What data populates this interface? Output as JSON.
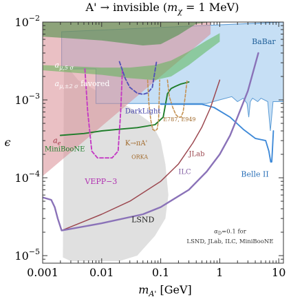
{
  "chart_data": {
    "type": "area",
    "title": "A' → invisible (m_χ = 1 MeV)",
    "title_parts": {
      "main": "A' → invisible (",
      "m": "m",
      "sub": "χ",
      "rest": " = 1 MeV)"
    },
    "xlabel": {
      "m": "m",
      "sub": "A'",
      "rest": " [GeV]"
    },
    "ylabel": "ϵ",
    "x_scale": "log",
    "y_scale": "log",
    "xlim": [
      0.001,
      12
    ],
    "ylim": [
      8e-06,
      0.01
    ],
    "x_ticks": [
      {
        "value": 0.001,
        "label": "0.001"
      },
      {
        "value": 0.01,
        "label": "0.01"
      },
      {
        "value": 0.1,
        "label": "0.1"
      },
      {
        "value": 1,
        "label": "1"
      },
      {
        "value": 10,
        "label": "10"
      }
    ],
    "y_ticks": [
      {
        "value": 1e-05,
        "base": "10",
        "exp": "−5"
      },
      {
        "value": 0.0001,
        "base": "10",
        "exp": "−4"
      },
      {
        "value": 0.001,
        "base": "10",
        "exp": "−3"
      },
      {
        "value": 0.01,
        "base": "10",
        "exp": "−2"
      }
    ],
    "regions": [
      {
        "name": "LSND",
        "color": "#e0e0e0",
        "stroke": "none",
        "opacity": 1,
        "x": [
          0.0022,
          0.0023,
          0.004,
          0.01,
          0.03,
          0.07,
          0.1,
          0.12,
          0.135,
          0.12,
          0.08,
          0.04,
          0.02,
          0.01,
          0.005,
          0.003,
          0.0022
        ],
        "y": [
          9.5e-06,
          0.003,
          0.0018,
          0.0012,
          0.0008,
          0.0005,
          0.0003,
          0.00015,
          6e-05,
          3e-05,
          1.8e-05,
          1e-05,
          8.5e-06,
          8.5e-06,
          8.5e-06,
          8.5e-06,
          9.5e-06
        ]
      },
      {
        "name": "BaBar",
        "color": "#c6dff5",
        "stroke": "#5b9bd5",
        "opacity": 1,
        "x": [
          0.0021,
          0.0021,
          0.008,
          0.008,
          0.6,
          0.9,
          1.6,
          2.0,
          2.5,
          2.9,
          3.1,
          3.3,
          3.6,
          4.4,
          5.0,
          6.5,
          7.2,
          8.0,
          12,
          12
        ],
        "y": [
          0.0075,
          0.0025,
          0.0025,
          0.0009,
          0.0009,
          0.00098,
          0.0011,
          0.00095,
          0.00105,
          0.0009,
          0.0006,
          0.00095,
          0.00105,
          0.00095,
          0.00105,
          0.00095,
          0.0004,
          0.00095,
          0.00095,
          0.01
        ]
      },
      {
        "name": "a_e",
        "color": "#d98c94",
        "stroke": "none",
        "opacity": 0.55,
        "x": [
          0.001,
          0.001,
          0.2,
          0.7,
          0.7
        ],
        "y": [
          0.000105,
          0.01,
          0.01,
          0.01,
          0.007
        ]
      },
      {
        "name": "a_mu_5sigma",
        "color": "#4f8f4a",
        "stroke": "none",
        "opacity": 0.6,
        "x": [
          0.001,
          0.01,
          0.05,
          0.1,
          0.2,
          0.4,
          0.7,
          0.7,
          0.3,
          0.1,
          0.03,
          0.01,
          0.001
        ],
        "y": [
          0.0065,
          0.0058,
          0.005,
          0.0052,
          0.0068,
          0.0095,
          0.01,
          0.01,
          0.01,
          0.01,
          0.01,
          0.01,
          0.01
        ]
      },
      {
        "name": "a_mu_2sigma_favored",
        "color": "#52b34a",
        "stroke": "none",
        "opacity": 0.5,
        "x": [
          0.001,
          0.01,
          0.03,
          0.08,
          0.15,
          0.3,
          0.6,
          1.0,
          1.0,
          0.6,
          0.3,
          0.15,
          0.08,
          0.03,
          0.01,
          0.001
        ],
        "y": [
          0.0024,
          0.0021,
          0.0019,
          0.0018,
          0.002,
          0.0028,
          0.0042,
          0.0056,
          0.0072,
          0.0058,
          0.0042,
          0.0032,
          0.0028,
          0.0026,
          0.0026,
          0.0028
        ]
      }
    ],
    "series": [
      {
        "name": "MiniBooNE",
        "color": "#1e7d2a",
        "width": 1.9,
        "dash": "",
        "x": [
          0.002,
          0.005,
          0.01,
          0.02,
          0.04,
          0.08,
          0.11,
          0.13,
          0.15,
          0.18,
          0.22,
          0.3
        ],
        "y": [
          0.00035,
          0.00037,
          0.0004,
          0.00042,
          0.00044,
          0.00048,
          0.0006,
          0.0012,
          0.0014,
          0.0015,
          0.0016,
          0.0017
        ]
      },
      {
        "name": "VEPP-3",
        "color": "#c43ac4",
        "width": 1.9,
        "dash": "5,3",
        "x": [
          0.0052,
          0.0058,
          0.0068,
          0.0085,
          0.011,
          0.015,
          0.019,
          0.021,
          0.0225
        ],
        "y": [
          0.0025,
          0.0007,
          0.00022,
          0.00018,
          0.00018,
          0.00018,
          0.00022,
          0.0007,
          0.0025
        ]
      },
      {
        "name": "DarkLight",
        "color": "#5252b8",
        "width": 1.9,
        "dash": "5,3",
        "x": [
          0.02,
          0.025,
          0.03,
          0.04,
          0.05,
          0.06,
          0.072,
          0.085
        ],
        "y": [
          0.0031,
          0.0019,
          0.00145,
          0.00122,
          0.00118,
          0.00123,
          0.00145,
          0.0031
        ]
      },
      {
        "name": "K→πA' ORKA",
        "color": "#c49050",
        "width": 1.6,
        "dash": "4,2.5",
        "x": [
          0.06,
          0.063,
          0.068,
          0.073,
          0.08,
          0.087,
          0.092,
          0.096
        ],
        "y": [
          0.0018,
          0.0009,
          0.00055,
          0.00042,
          0.0004,
          0.00042,
          0.00055,
          0.0018
        ]
      },
      {
        "name": "E787, E949",
        "color": "#c49050",
        "width": 1.6,
        "dash": "4,2.5",
        "x": [
          0.13,
          0.14,
          0.16,
          0.18,
          0.2,
          0.22,
          0.24,
          0.26,
          0.28
        ],
        "y": [
          0.0018,
          0.0011,
          0.0008,
          0.00065,
          0.0006,
          0.0006,
          0.0007,
          0.0011,
          0.0018
        ]
      },
      {
        "name": "Belle II",
        "color": "#3f8ad8",
        "width": 1.9,
        "dash": "",
        "x": [
          0.1,
          0.5,
          0.8,
          1.5,
          2.5,
          4.0,
          6.0,
          6.8,
          7.3,
          7.6,
          7.8,
          8.1
        ],
        "y": [
          0.00088,
          0.00088,
          0.0008,
          0.0006,
          0.00042,
          0.00032,
          0.0003,
          0.00022,
          0.00016,
          0.00016,
          0.00022,
          0.0004
        ]
      },
      {
        "name": "JLab",
        "color": "#9c4850",
        "width": 1.5,
        "dash": "",
        "x": [
          0.0021,
          0.01,
          0.03,
          0.1,
          0.2,
          0.35,
          0.5,
          0.7,
          1.0
        ],
        "y": [
          2.1e-05,
          3.4e-05,
          5e-05,
          9e-05,
          0.00015,
          0.00028,
          0.00045,
          0.0008,
          0.0018
        ]
      },
      {
        "name": "ILC",
        "color": "#8a72b8",
        "width": 2.4,
        "dash": "",
        "x": [
          0.001,
          0.0014,
          0.0016,
          0.0018,
          0.0021,
          0.01,
          0.05,
          0.1,
          0.3,
          0.6,
          1.0,
          1.5,
          2.0,
          3.0,
          4.5
        ],
        "y": [
          5.6e-05,
          5.2e-05,
          4.2e-05,
          3e-05,
          2.1e-05,
          2.6e-05,
          3.4e-05,
          4.2e-05,
          7e-05,
          0.00012,
          0.0002,
          0.00035,
          0.0006,
          0.0013,
          0.004
        ]
      }
    ],
    "labels": [
      {
        "key": "babar",
        "text": "BaBar",
        "x": 3.5,
        "y": 0.0052,
        "color": "#1f5f99",
        "size": 11
      },
      {
        "key": "ae",
        "text": "a",
        "sub": "e",
        "x": 0.0015,
        "y": 0.00028,
        "color": "#9e3040",
        "size": 11,
        "italic": true
      },
      {
        "key": "amu5",
        "text": "a",
        "sub": "μ,5 σ",
        "x": 0.0016,
        "y": 0.0026,
        "color": "#ffffff",
        "size": 11,
        "italic": true
      },
      {
        "key": "amu2",
        "text": "a",
        "sub": "μ,±2 σ",
        "x": 0.0016,
        "y": 0.0015,
        "color": "#ffffff",
        "size": 11,
        "italic": true,
        "suffix": " favored"
      },
      {
        "key": "miniboone",
        "text": "MiniBooNE",
        "x": 0.00108,
        "y": 0.00022,
        "color": "#1e7d2a",
        "size": 10
      },
      {
        "key": "darklight",
        "text": "DarkLight",
        "x": 0.025,
        "y": 0.00067,
        "color": "#4040a8",
        "size": 10
      },
      {
        "key": "kpia",
        "text": "K→πA'",
        "x": 0.025,
        "y": 0.00026,
        "color": "#a06828",
        "size": 10
      },
      {
        "key": "orka",
        "text": "ORKA",
        "x": 0.032,
        "y": 0.000175,
        "color": "#a06828",
        "size": 8
      },
      {
        "key": "e787",
        "text": "E787, E949",
        "x": 0.11,
        "y": 0.00053,
        "color": "#a06828",
        "size": 8
      },
      {
        "key": "vepp",
        "text": "VEPP−3",
        "x": 0.0052,
        "y": 8.3e-05,
        "color": "#b030b0",
        "size": 11
      },
      {
        "key": "jlab",
        "text": "JLab",
        "x": 0.3,
        "y": 0.00019,
        "color": "#9c4850",
        "size": 10
      },
      {
        "key": "ilc",
        "text": "ILC",
        "x": 0.2,
        "y": 0.000112,
        "color": "#7f5aa0",
        "size": 10
      },
      {
        "key": "belle",
        "text": "Belle II",
        "x": 2.3,
        "y": 0.000103,
        "color": "#2a70b8",
        "size": 11
      },
      {
        "key": "lsnd",
        "text": "LSND",
        "x": 0.032,
        "y": 2.7e-05,
        "color": "#222222",
        "size": 11
      }
    ],
    "annotation": {
      "line1_a": "α",
      "line1_sub": "D",
      "line1_rest": "=0.1 for",
      "line2": "LSND, JLab, ILC, MiniBooNE",
      "x": 1.5,
      "y1": 1.95e-05,
      "y2": 1.45e-05
    },
    "grid": false,
    "legend": "none"
  }
}
